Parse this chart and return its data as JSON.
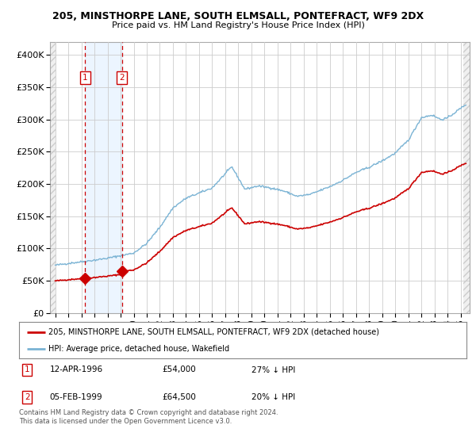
{
  "title": "205, MINSTHORPE LANE, SOUTH ELMSALL, PONTEFRACT, WF9 2DX",
  "subtitle": "Price paid vs. HM Land Registry's House Price Index (HPI)",
  "legend_line1": "205, MINSTHORPE LANE, SOUTH ELMSALL, PONTEFRACT, WF9 2DX (detached house)",
  "legend_line2": "HPI: Average price, detached house, Wakefield",
  "footnote": "Contains HM Land Registry data © Crown copyright and database right 2024.\nThis data is licensed under the Open Government Licence v3.0.",
  "sale1_date": 1996.28,
  "sale1_price": 54000,
  "sale1_label": "12-APR-1996",
  "sale1_amount": "£54,000",
  "sale1_hpi": "27% ↓ HPI",
  "sale2_date": 1999.09,
  "sale2_price": 64500,
  "sale2_label": "05-FEB-1999",
  "sale2_amount": "£64,500",
  "sale2_hpi": "20% ↓ HPI",
  "hpi_color": "#7ab3d4",
  "sale_color": "#cc0000",
  "marker_color": "#cc0000",
  "dashed_color": "#cc0000",
  "shade_color": "#ddeeff",
  "ylim": [
    0,
    420000
  ],
  "xlim_start": 1993.6,
  "xlim_end": 2025.7,
  "yticks": [
    0,
    50000,
    100000,
    150000,
    200000,
    250000,
    300000,
    350000,
    400000
  ],
  "hpi_start_year": 1994.0,
  "hpi_end_year": 2025.4
}
